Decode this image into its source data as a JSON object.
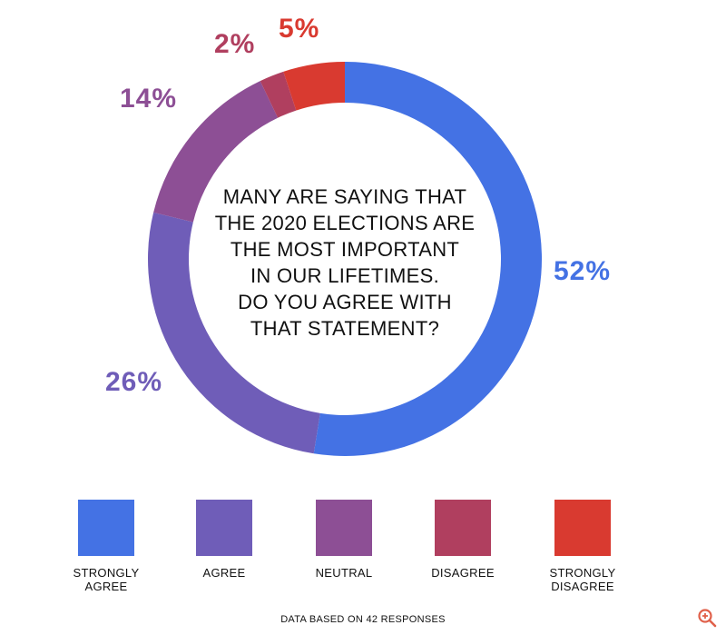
{
  "chart_data": {
    "type": "pie",
    "donut": true,
    "title": "MANY ARE SAYING THAT\nTHE 2020 ELECTIONS ARE\nTHE MOST IMPORTANT\nIN OUR LIFETIMES.\nDO YOU AGREE WITH\nTHAT STATEMENT?",
    "categories": [
      "STRONGLY AGREE",
      "AGREE",
      "NEUTRAL",
      "DISAGREE",
      "STRONGLY DISAGREE"
    ],
    "values": [
      52,
      26,
      14,
      2,
      5
    ],
    "value_labels": [
      "52%",
      "26%",
      "14%",
      "2%",
      "5%"
    ],
    "colors": [
      "#4472e4",
      "#6f5db8",
      "#8d4f95",
      "#b03f5f",
      "#d93a30"
    ],
    "footnote": "DATA BASED ON 42 RESPONSES"
  },
  "icons": {
    "zoom": "zoom-in-icon"
  }
}
